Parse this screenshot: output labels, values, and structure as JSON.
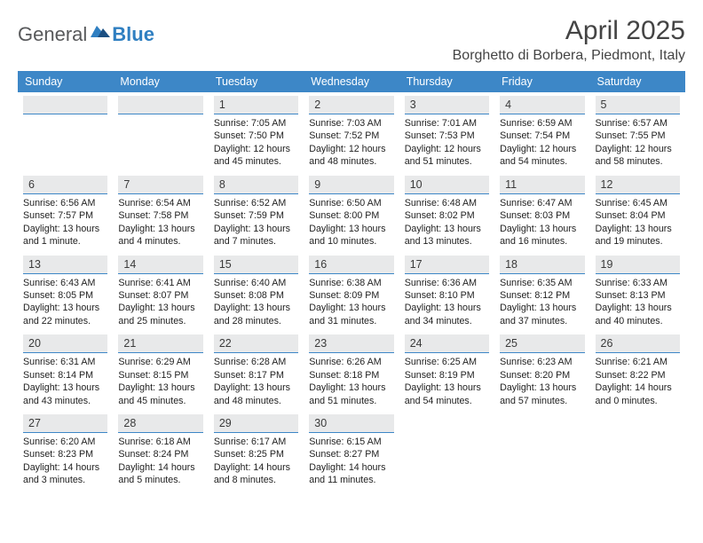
{
  "logo": {
    "general": "General",
    "blue": "Blue"
  },
  "title": "April 2025",
  "location": "Borghetto di Borbera, Piedmont, Italy",
  "colors": {
    "header_bg": "#3d87c7",
    "header_fg": "#ffffff",
    "day_bg": "#e8e9ea",
    "cell_border": "#3d87c7",
    "logo_gray": "#58595b",
    "logo_blue": "#2f7fc1"
  },
  "weekdays": [
    "Sunday",
    "Monday",
    "Tuesday",
    "Wednesday",
    "Thursday",
    "Friday",
    "Saturday"
  ],
  "weeks": [
    [
      null,
      null,
      {
        "n": "1",
        "sunrise": "7:05 AM",
        "sunset": "7:50 PM",
        "daylight": "12 hours and 45 minutes."
      },
      {
        "n": "2",
        "sunrise": "7:03 AM",
        "sunset": "7:52 PM",
        "daylight": "12 hours and 48 minutes."
      },
      {
        "n": "3",
        "sunrise": "7:01 AM",
        "sunset": "7:53 PM",
        "daylight": "12 hours and 51 minutes."
      },
      {
        "n": "4",
        "sunrise": "6:59 AM",
        "sunset": "7:54 PM",
        "daylight": "12 hours and 54 minutes."
      },
      {
        "n": "5",
        "sunrise": "6:57 AM",
        "sunset": "7:55 PM",
        "daylight": "12 hours and 58 minutes."
      }
    ],
    [
      {
        "n": "6",
        "sunrise": "6:56 AM",
        "sunset": "7:57 PM",
        "daylight": "13 hours and 1 minute."
      },
      {
        "n": "7",
        "sunrise": "6:54 AM",
        "sunset": "7:58 PM",
        "daylight": "13 hours and 4 minutes."
      },
      {
        "n": "8",
        "sunrise": "6:52 AM",
        "sunset": "7:59 PM",
        "daylight": "13 hours and 7 minutes."
      },
      {
        "n": "9",
        "sunrise": "6:50 AM",
        "sunset": "8:00 PM",
        "daylight": "13 hours and 10 minutes."
      },
      {
        "n": "10",
        "sunrise": "6:48 AM",
        "sunset": "8:02 PM",
        "daylight": "13 hours and 13 minutes."
      },
      {
        "n": "11",
        "sunrise": "6:47 AM",
        "sunset": "8:03 PM",
        "daylight": "13 hours and 16 minutes."
      },
      {
        "n": "12",
        "sunrise": "6:45 AM",
        "sunset": "8:04 PM",
        "daylight": "13 hours and 19 minutes."
      }
    ],
    [
      {
        "n": "13",
        "sunrise": "6:43 AM",
        "sunset": "8:05 PM",
        "daylight": "13 hours and 22 minutes."
      },
      {
        "n": "14",
        "sunrise": "6:41 AM",
        "sunset": "8:07 PM",
        "daylight": "13 hours and 25 minutes."
      },
      {
        "n": "15",
        "sunrise": "6:40 AM",
        "sunset": "8:08 PM",
        "daylight": "13 hours and 28 minutes."
      },
      {
        "n": "16",
        "sunrise": "6:38 AM",
        "sunset": "8:09 PM",
        "daylight": "13 hours and 31 minutes."
      },
      {
        "n": "17",
        "sunrise": "6:36 AM",
        "sunset": "8:10 PM",
        "daylight": "13 hours and 34 minutes."
      },
      {
        "n": "18",
        "sunrise": "6:35 AM",
        "sunset": "8:12 PM",
        "daylight": "13 hours and 37 minutes."
      },
      {
        "n": "19",
        "sunrise": "6:33 AM",
        "sunset": "8:13 PM",
        "daylight": "13 hours and 40 minutes."
      }
    ],
    [
      {
        "n": "20",
        "sunrise": "6:31 AM",
        "sunset": "8:14 PM",
        "daylight": "13 hours and 43 minutes."
      },
      {
        "n": "21",
        "sunrise": "6:29 AM",
        "sunset": "8:15 PM",
        "daylight": "13 hours and 45 minutes."
      },
      {
        "n": "22",
        "sunrise": "6:28 AM",
        "sunset": "8:17 PM",
        "daylight": "13 hours and 48 minutes."
      },
      {
        "n": "23",
        "sunrise": "6:26 AM",
        "sunset": "8:18 PM",
        "daylight": "13 hours and 51 minutes."
      },
      {
        "n": "24",
        "sunrise": "6:25 AM",
        "sunset": "8:19 PM",
        "daylight": "13 hours and 54 minutes."
      },
      {
        "n": "25",
        "sunrise": "6:23 AM",
        "sunset": "8:20 PM",
        "daylight": "13 hours and 57 minutes."
      },
      {
        "n": "26",
        "sunrise": "6:21 AM",
        "sunset": "8:22 PM",
        "daylight": "14 hours and 0 minutes."
      }
    ],
    [
      {
        "n": "27",
        "sunrise": "6:20 AM",
        "sunset": "8:23 PM",
        "daylight": "14 hours and 3 minutes."
      },
      {
        "n": "28",
        "sunrise": "6:18 AM",
        "sunset": "8:24 PM",
        "daylight": "14 hours and 5 minutes."
      },
      {
        "n": "29",
        "sunrise": "6:17 AM",
        "sunset": "8:25 PM",
        "daylight": "14 hours and 8 minutes."
      },
      {
        "n": "30",
        "sunrise": "6:15 AM",
        "sunset": "8:27 PM",
        "daylight": "14 hours and 11 minutes."
      },
      null,
      null,
      null
    ]
  ],
  "labels": {
    "sunrise": "Sunrise:",
    "sunset": "Sunset:",
    "daylight": "Daylight:"
  }
}
